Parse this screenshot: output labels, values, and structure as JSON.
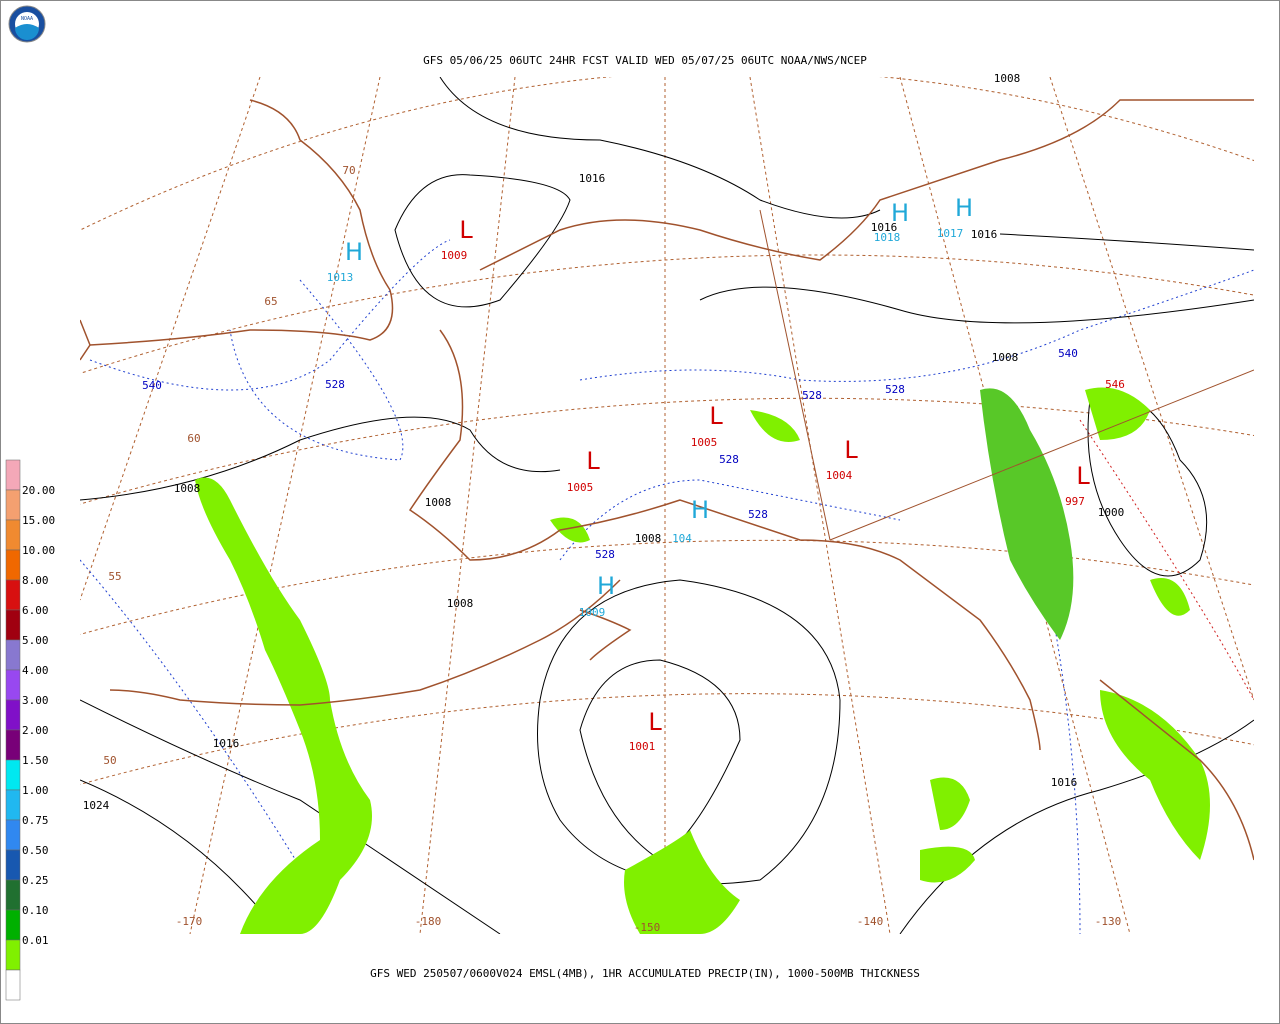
{
  "header": {
    "logo": "NOAA",
    "title": "GFS 05/06/25 06UTC 24HR FCST VALID WED 05/07/25 06UTC NOAA/NWS/NCEP"
  },
  "footer": {
    "caption": "GFS WED 250507/0600V024 EMSL(4MB), 1HR ACCUMULATED PRECIP(IN), 1000-500MB THICKNESS"
  },
  "legend": {
    "labels": [
      "20.00",
      "15.00",
      "10.00",
      "8.00",
      "6.00",
      "5.00",
      "4.00",
      "3.00",
      "2.00",
      "1.50",
      "1.00",
      "0.75",
      "0.50",
      "0.25",
      "0.10",
      "0.01"
    ]
  },
  "map": {
    "pressure_centers": [
      {
        "letter": "H",
        "value": "1013"
      },
      {
        "letter": "L",
        "value": "1009"
      },
      {
        "letter": "H",
        "value": "1018"
      },
      {
        "letter": "H",
        "value": "1017"
      },
      {
        "letter": "L",
        "value": "1005"
      },
      {
        "letter": "L",
        "value": "1004"
      },
      {
        "letter": "L",
        "value": "1005"
      },
      {
        "letter": "L",
        "value": "997"
      },
      {
        "letter": "H",
        "value": "104"
      },
      {
        "letter": "H",
        "value": "1009"
      },
      {
        "letter": "L",
        "value": "1001"
      }
    ],
    "isobar_labels": [
      "1008",
      "1016",
      "1016",
      "1016",
      "1008",
      "1008",
      "1008",
      "1008",
      "1008",
      "1000",
      "1016",
      "1024",
      "1016"
    ],
    "thickness_labels": [
      {
        "text": "540",
        "color": "#0000c0"
      },
      {
        "text": "528",
        "color": "#0000c0"
      },
      {
        "text": "528",
        "color": "#0000c0"
      },
      {
        "text": "528",
        "color": "#0000c0"
      },
      {
        "text": "540",
        "color": "#0000c0"
      },
      {
        "text": "528",
        "color": "#0000c0"
      },
      {
        "text": "528",
        "color": "#0000c0"
      },
      {
        "text": "528",
        "color": "#0000c0"
      },
      {
        "text": "546",
        "color": "#d00000"
      }
    ],
    "graticule_labels": [
      "70",
      "65",
      "60",
      "55",
      "50",
      "-170",
      "-180",
      "-150",
      "-140",
      "-130"
    ]
  }
}
